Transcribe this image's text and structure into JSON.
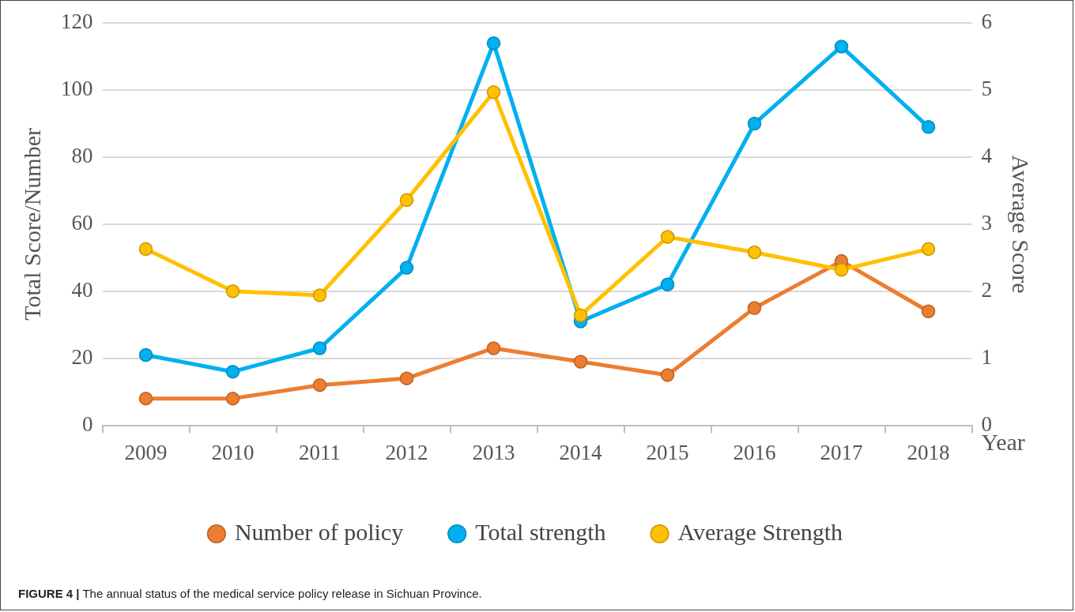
{
  "chart_data": {
    "type": "line",
    "categories": [
      "2009",
      "2010",
      "2011",
      "2012",
      "2013",
      "2014",
      "2015",
      "2016",
      "2017",
      "2018"
    ],
    "series": [
      {
        "name": "Number of policy",
        "color": "#ed7d31",
        "values": [
          8,
          8,
          12,
          14,
          23,
          19,
          15,
          35,
          49,
          34
        ]
      },
      {
        "name": "Total strength",
        "color": "#00b0f0",
        "values": [
          21,
          16,
          23,
          47,
          114,
          31,
          42,
          90,
          113,
          89
        ]
      },
      {
        "name": "Average Strength",
        "color": "#ffc000",
        "axis": "y2",
        "values": [
          2.63,
          2.0,
          1.94,
          3.36,
          4.97,
          1.64,
          2.81,
          2.58,
          2.32,
          2.63
        ]
      }
    ],
    "xlabel": "Year",
    "ylabel": "Total Score/Number",
    "y2label": "Average Score",
    "ylim": [
      0,
      120
    ],
    "yticks": [
      0,
      20,
      40,
      60,
      80,
      100,
      120
    ],
    "y2lim": [
      0,
      6
    ],
    "y2ticks": [
      0,
      1,
      2,
      3,
      4,
      5,
      6
    ],
    "grid": "y",
    "legend": "bottom",
    "marker": "circle",
    "line_style": "solid",
    "annotations": [
      "FIGURE 4 | The annual status of the medical service policy release in Sichuan Province."
    ]
  }
}
